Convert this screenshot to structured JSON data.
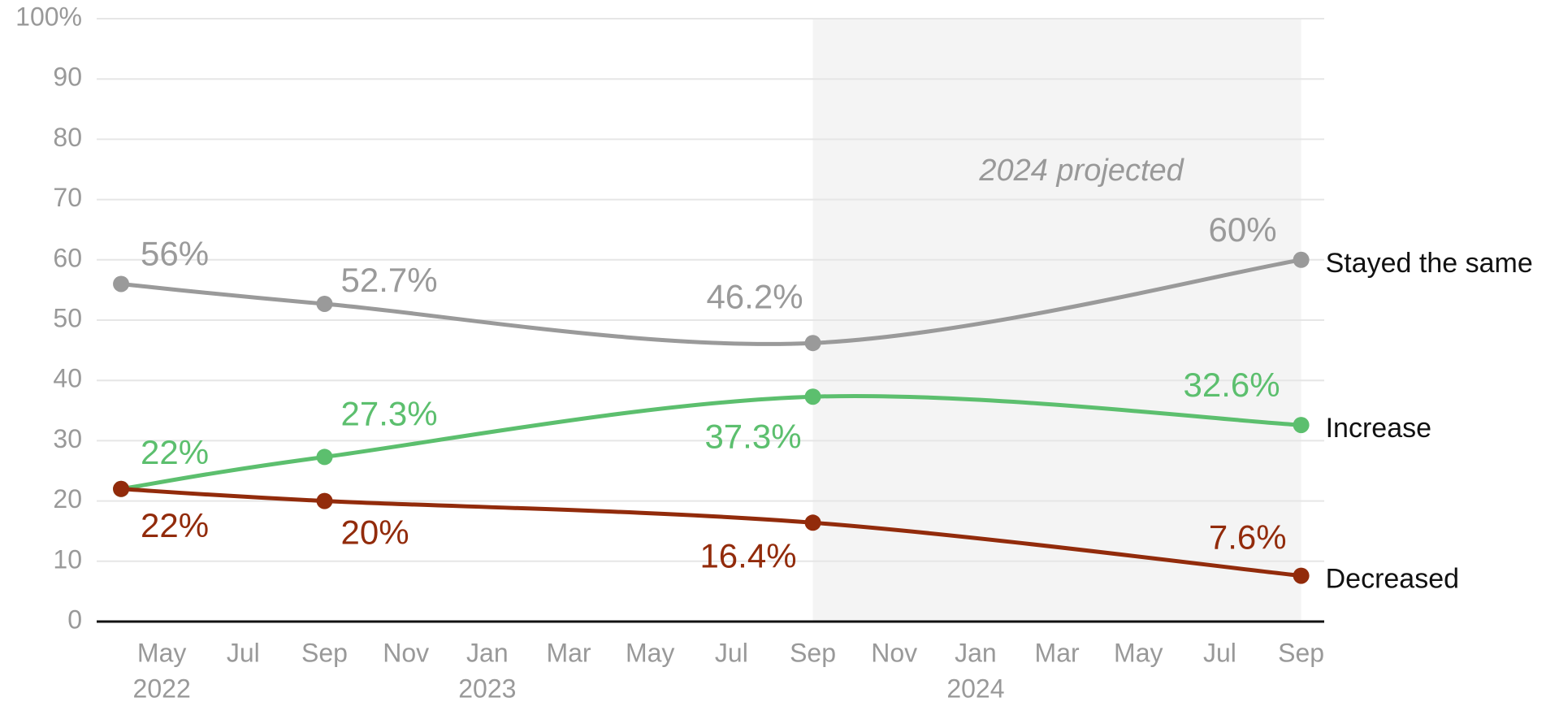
{
  "chart_data": {
    "type": "line",
    "x": [
      "2022-04",
      "2022-09",
      "2023-09",
      "2024-09"
    ],
    "xlim": [
      "2022-03-13",
      "2024-09-18"
    ],
    "xticks": [
      {
        "value": "2022-05",
        "label": "May"
      },
      {
        "value": "2022-07",
        "label": "Jul"
      },
      {
        "value": "2022-09",
        "label": "Sep"
      },
      {
        "value": "2022-11",
        "label": "Nov"
      },
      {
        "value": "2023-01",
        "label": "Jan"
      },
      {
        "value": "2023-03",
        "label": "Mar"
      },
      {
        "value": "2023-05",
        "label": "May"
      },
      {
        "value": "2023-07",
        "label": "Jul"
      },
      {
        "value": "2023-09",
        "label": "Sep"
      },
      {
        "value": "2023-11",
        "label": "Nov"
      },
      {
        "value": "2024-01",
        "label": "Jan"
      },
      {
        "value": "2024-03",
        "label": "Mar"
      },
      {
        "value": "2024-05",
        "label": "May"
      },
      {
        "value": "2024-07",
        "label": "Jul"
      },
      {
        "value": "2024-09",
        "label": "Sep"
      }
    ],
    "xtick_years": [
      {
        "value": "2022-05",
        "label": "2022"
      },
      {
        "value": "2023-01",
        "label": "2023"
      },
      {
        "value": "2024-01",
        "label": "2024"
      }
    ],
    "ylim": [
      0,
      100
    ],
    "yticks": [
      0,
      10,
      20,
      30,
      40,
      50,
      60,
      70,
      80,
      90,
      {
        "value": 100,
        "label": "100%"
      }
    ],
    "grid": true,
    "shaded_region": {
      "x": [
        "2023-09",
        "2024-09"
      ],
      "label": "2024 projected"
    },
    "series": [
      {
        "name": "Stayed the same",
        "color": "#9a9a9a",
        "values": [
          56,
          52.7,
          46.2,
          60
        ],
        "value_labels": [
          "56%",
          "52.7%",
          "46.2%",
          "60%"
        ]
      },
      {
        "name": "Increase",
        "color": "#5cbf6e",
        "values": [
          22,
          27.3,
          37.3,
          32.6
        ],
        "value_labels": [
          "22%",
          "27.3%",
          "37.3%",
          "32.6%"
        ]
      },
      {
        "name": "Decreased",
        "color": "#922b0b",
        "values": [
          22,
          20,
          16.4,
          7.6
        ],
        "value_labels": [
          "22%",
          "20%",
          "16.4%",
          "7.6%"
        ]
      }
    ]
  }
}
